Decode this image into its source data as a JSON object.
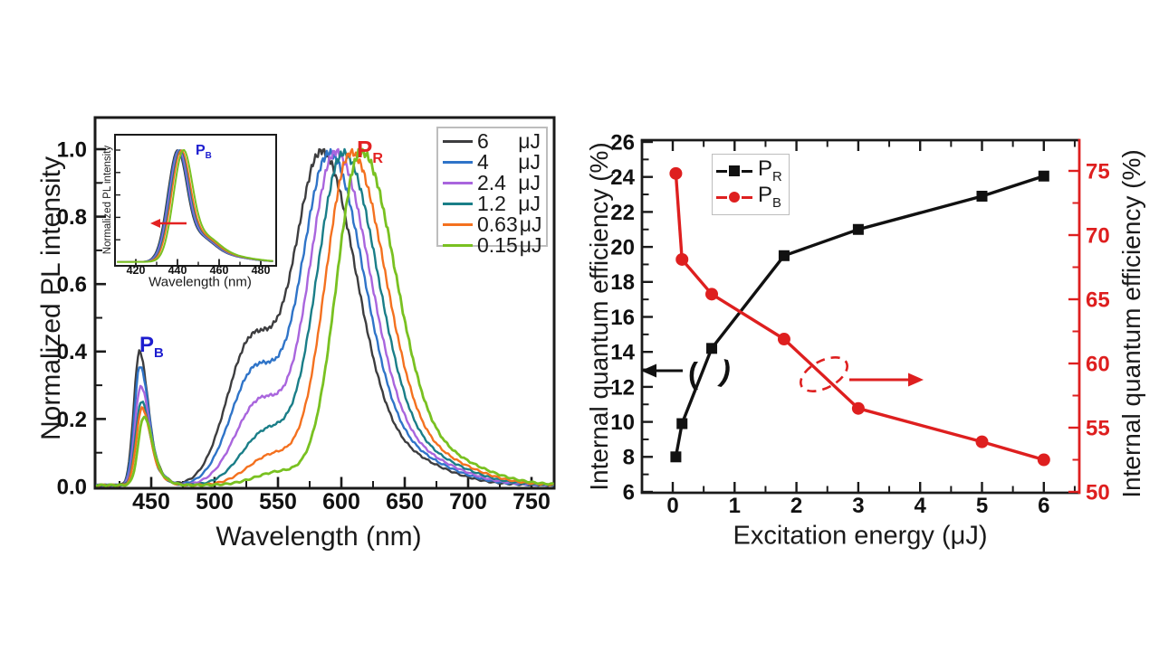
{
  "figure": {
    "background": "#ffffff",
    "accent_red": "#de1f1f",
    "accent_blue": "#1d1dcf"
  },
  "chart_data": [
    {
      "type": "line",
      "panel": "left",
      "xlabel": "Wavelength (nm)",
      "ylabel": "Normalized PL intensity",
      "xlim": [
        406,
        768
      ],
      "ylim": [
        0,
        1.09
      ],
      "x_ticks": [
        450,
        500,
        550,
        600,
        650,
        700,
        750
      ],
      "y_ticks": [
        "0.0",
        "0.2",
        "0.4",
        "0.6",
        "0.8",
        "1.0"
      ],
      "grid": false,
      "legend_position": "top-right",
      "peak_labels": {
        "pb": {
          "base": "P",
          "sub": "B",
          "color": "#1d1dcf"
        },
        "pr": {
          "base": "P",
          "sub": "R",
          "color": "#e32222"
        }
      },
      "series": [
        {
          "energy": "6",
          "unit": "μJ",
          "color": "#3d3d3f",
          "blue_peak": {
            "center": 440.5,
            "height": 0.39
          },
          "shoulder": {
            "center": 528,
            "height": 0.42
          },
          "main_peak": {
            "center": 584,
            "sigma_left": 22,
            "sigma_right": 27
          }
        },
        {
          "energy": "4",
          "unit": "μJ",
          "color": "#2f74c8",
          "blue_peak": {
            "center": 441,
            "height": 0.35
          },
          "shoulder": {
            "center": 531,
            "height": 0.34
          },
          "main_peak": {
            "center": 590,
            "sigma_left": 22,
            "sigma_right": 27
          }
        },
        {
          "energy": "2.4",
          "unit": "μJ",
          "color": "#a965dd",
          "blue_peak": {
            "center": 441.5,
            "height": 0.29
          },
          "shoulder": {
            "center": 535,
            "height": 0.25
          },
          "main_peak": {
            "center": 595,
            "sigma_left": 21,
            "sigma_right": 27
          }
        },
        {
          "energy": "1.2",
          "unit": "μJ",
          "color": "#1a7e88",
          "blue_peak": {
            "center": 442,
            "height": 0.245
          },
          "shoulder": {
            "center": 540,
            "height": 0.16
          },
          "main_peak": {
            "center": 601,
            "sigma_left": 21,
            "sigma_right": 27
          }
        },
        {
          "energy": "0.63",
          "unit": "μJ",
          "color": "#f4711f",
          "blue_peak": {
            "center": 442.5,
            "height": 0.225
          },
          "shoulder": {
            "center": 545,
            "height": 0.09
          },
          "main_peak": {
            "center": 607,
            "sigma_left": 20,
            "sigma_right": 27
          }
        },
        {
          "energy": "0.15",
          "unit": "μJ",
          "color": "#79c121",
          "blue_peak": {
            "center": 444,
            "height": 0.2
          },
          "shoulder": {
            "center": 551,
            "height": 0.04
          },
          "main_peak": {
            "center": 615,
            "sigma_left": 19,
            "sigma_right": 27
          }
        }
      ],
      "inset": {
        "xlabel": "Wavelength (nm)",
        "ylabel": "Normalized PL intensity",
        "x_ticks": [
          420,
          440,
          460,
          480
        ],
        "xlim": [
          410,
          487
        ],
        "ylim": [
          0,
          1.15
        ],
        "peak_label": {
          "base": "P",
          "sub": "B",
          "color": "#1d1dcf"
        },
        "arrow": {
          "direction": "left",
          "color": "#e32222",
          "meaning": "blue shift with decreasing energy"
        },
        "peak_center": 441,
        "peak_shifts": [
          -1.3,
          -0.9,
          -0.4,
          0.1,
          0.6,
          1.6
        ]
      }
    },
    {
      "type": "scatter-line",
      "panel": "right",
      "xlabel": "Excitation energy (μJ)",
      "ylabel_left": "Internal quantum efficiency (%)",
      "ylabel_right": "Internal quantum efficiency (%)",
      "xlim": [
        -0.5,
        6.6
      ],
      "ylim_left": [
        6,
        26
      ],
      "ylim_right": [
        50,
        77.4
      ],
      "x_ticks": [
        0,
        1,
        2,
        3,
        4,
        5,
        6
      ],
      "y_ticks_left": [
        6,
        8,
        10,
        12,
        14,
        16,
        18,
        20,
        22,
        24,
        26
      ],
      "y_ticks_right": [
        50,
        55,
        60,
        65,
        70,
        75
      ],
      "axis_color_right": "#de1f1f",
      "grid": false,
      "legend_position": "top-left",
      "series": [
        {
          "name": "PR",
          "label": {
            "base": "P",
            "sub": "R"
          },
          "axis": "left",
          "color": "#111111",
          "marker": "square",
          "x": [
            0.05,
            0.15,
            0.63,
            1.8,
            3,
            5,
            6
          ],
          "y": [
            8.0,
            9.9,
            14.2,
            19.5,
            21.0,
            22.9,
            24.05
          ]
        },
        {
          "name": "PB",
          "label": {
            "base": "P",
            "sub": "B"
          },
          "axis": "right",
          "color": "#de1f1f",
          "marker": "circle",
          "x": [
            0.05,
            0.15,
            0.63,
            1.8,
            3,
            5,
            6
          ],
          "y": [
            74.8,
            68.1,
            65.4,
            61.9,
            56.5,
            53.9,
            52.5
          ]
        }
      ],
      "annotations": {
        "left_axis_pointer": {
          "type": "arrow-left-with-parentheses",
          "color": "#111111"
        },
        "right_axis_pointer": {
          "type": "dashed-ellipse-with-arrow-right",
          "color": "#de1f1f"
        }
      }
    }
  ]
}
